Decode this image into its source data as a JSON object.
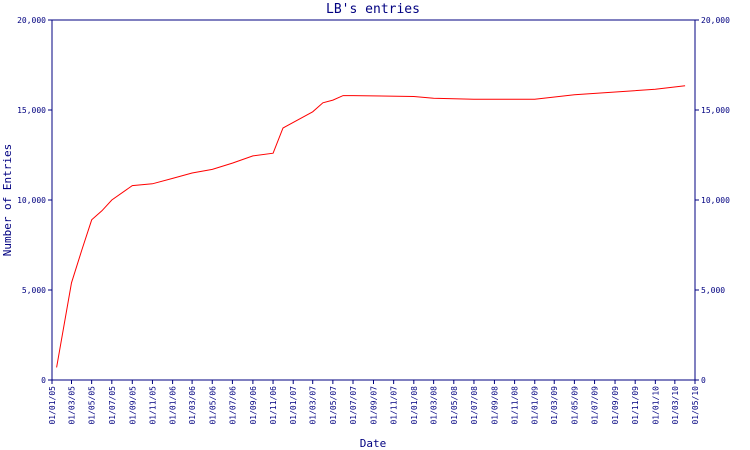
{
  "chart_data": {
    "type": "line",
    "title": "LB's entries",
    "xlabel": "Date",
    "ylabel": "Number of Entries",
    "x": [
      "15/01/05",
      "01/03/05",
      "01/04/05",
      "01/05/05",
      "01/06/05",
      "01/07/05",
      "01/09/05",
      "01/11/05",
      "01/01/06",
      "01/03/06",
      "01/05/06",
      "01/07/06",
      "01/09/06",
      "01/11/06",
      "01/12/06",
      "01/03/07",
      "01/04/07",
      "01/05/07",
      "01/06/07",
      "01/07/07",
      "01/01/08",
      "01/03/08",
      "01/07/08",
      "01/01/09",
      "01/05/09",
      "01/01/10",
      "01/04/10"
    ],
    "series": [
      {
        "name": "entries",
        "color": "#ff0000",
        "values": [
          700,
          5400,
          7200,
          8900,
          9400,
          10000,
          10800,
          10900,
          11200,
          11500,
          11700,
          12050,
          12450,
          12600,
          14000,
          14900,
          15400,
          15550,
          15800,
          15800,
          15750,
          15650,
          15600,
          15600,
          15850,
          16150,
          16350
        ]
      }
    ],
    "xlim": [
      "01/01/05",
      "01/05/10"
    ],
    "xticks": [
      "01/01/05",
      "01/03/05",
      "01/05/05",
      "01/07/05",
      "01/09/05",
      "01/11/05",
      "01/01/06",
      "01/03/06",
      "01/05/06",
      "01/07/06",
      "01/09/06",
      "01/11/06",
      "01/01/07",
      "01/03/07",
      "01/05/07",
      "01/07/07",
      "01/09/07",
      "01/11/07",
      "01/01/08",
      "01/03/08",
      "01/05/08",
      "01/07/08",
      "01/09/08",
      "01/11/08",
      "01/01/09",
      "01/03/09",
      "01/05/09",
      "01/07/09",
      "01/09/09",
      "01/11/09",
      "01/01/10",
      "01/03/10",
      "01/05/10"
    ],
    "ylim": [
      0,
      20000
    ],
    "yticks": [
      0,
      {
        "value": 5000,
        "label": "5,000"
      },
      {
        "value": 10000,
        "label": "10,000"
      },
      {
        "value": 15000,
        "label": "15,000"
      },
      {
        "value": 20000,
        "label": "20,000"
      }
    ],
    "axis_color": "#000080"
  }
}
